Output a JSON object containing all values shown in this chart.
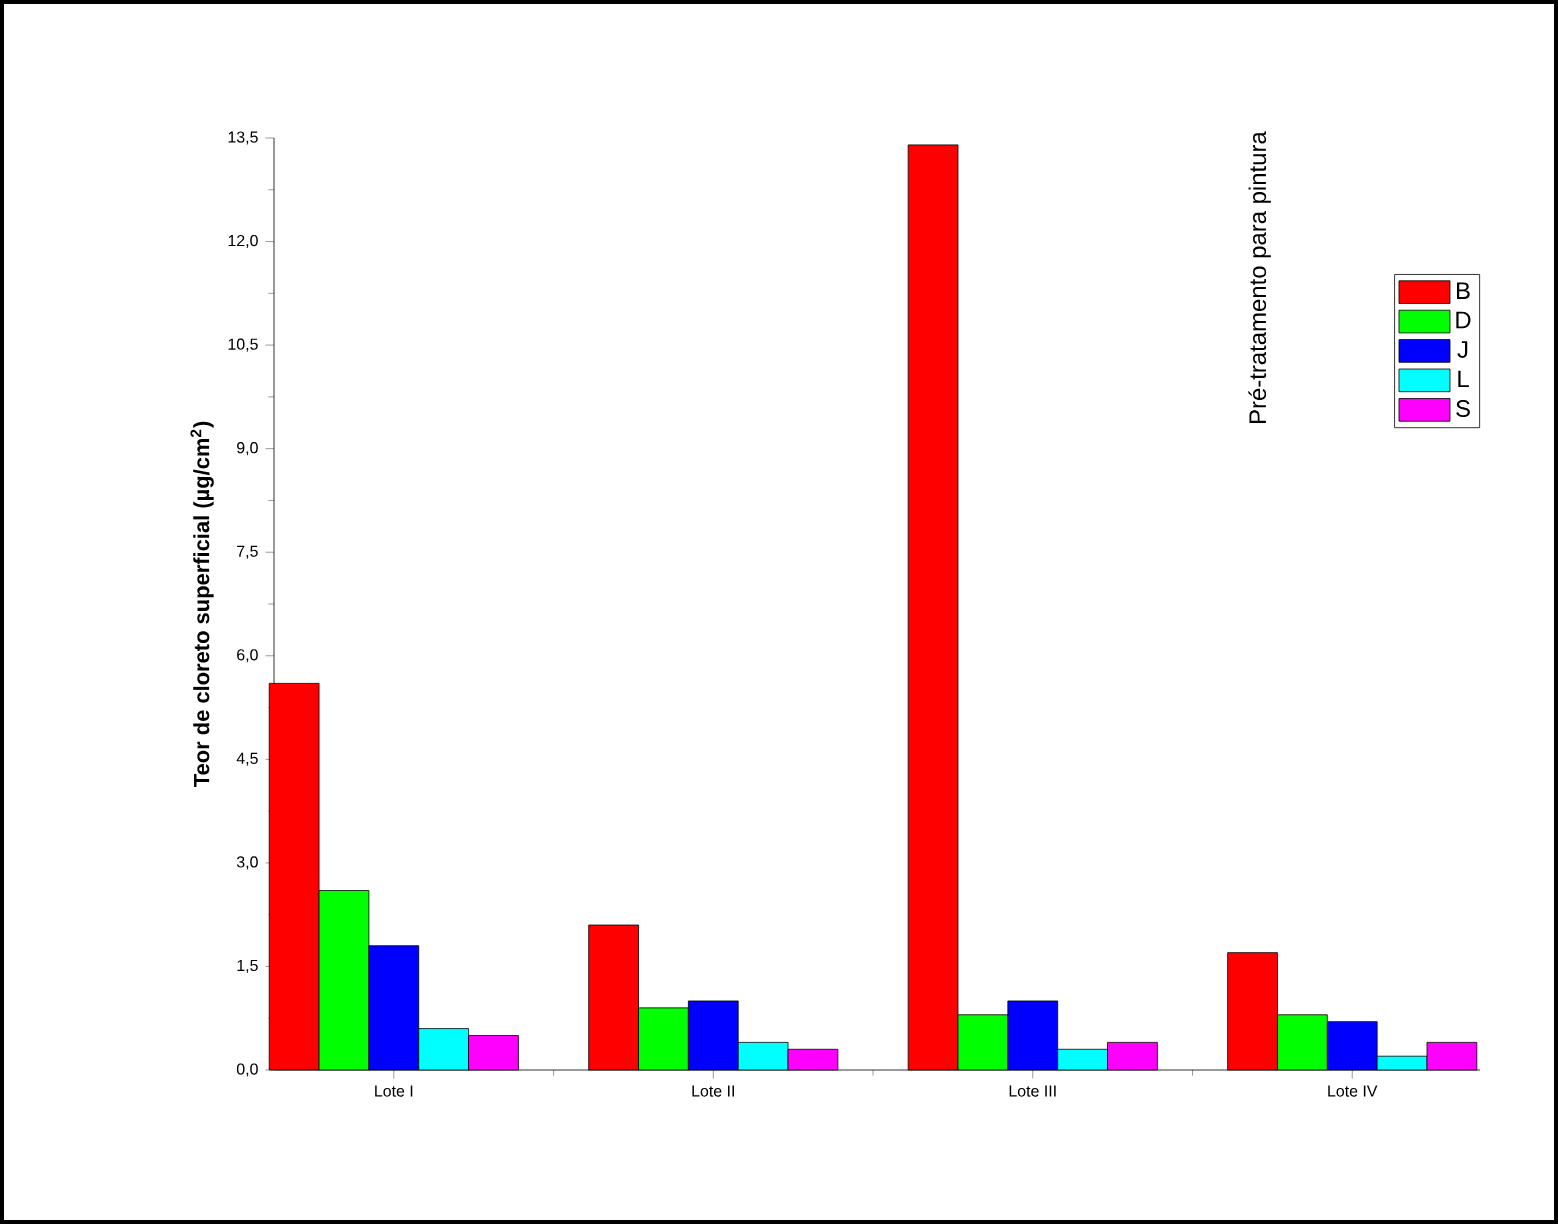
{
  "chart_data": {
    "type": "bar",
    "ylabel": "Teor de cloreto superficial (µg/cm$^{2}$)",
    "categories": [
      "Lote I",
      "Lote II",
      "Lote III",
      "Lote IV"
    ],
    "series": [
      {
        "name": "B",
        "color": "#ff0000",
        "values": [
          5.6,
          2.1,
          13.4,
          1.7
        ]
      },
      {
        "name": "D",
        "color": "#00ff00",
        "values": [
          2.6,
          0.9,
          0.8,
          0.8
        ]
      },
      {
        "name": "J",
        "color": "#0000ff",
        "values": [
          1.8,
          1.0,
          1.0,
          0.7
        ]
      },
      {
        "name": "L",
        "color": "#00ffff",
        "values": [
          0.6,
          0.4,
          0.3,
          0.2
        ]
      },
      {
        "name": "S",
        "color": "#ff00ff",
        "values": [
          0.5,
          0.3,
          0.4,
          0.4
        ]
      }
    ],
    "ylim": [
      0,
      13.5
    ],
    "yticks": [
      {
        "value": 0,
        "label": "0,0"
      },
      {
        "value": 1.5,
        "label": "1,5"
      },
      {
        "value": 3,
        "label": "3,0"
      },
      {
        "value": 4.5,
        "label": "4,5"
      },
      {
        "value": 6,
        "label": "6,0"
      },
      {
        "value": 7.5,
        "label": "7,5"
      },
      {
        "value": 9,
        "label": "9,0"
      },
      {
        "value": 10.5,
        "label": "10,5"
      },
      {
        "value": 12,
        "label": "12,0"
      },
      {
        "value": 13.5,
        "label": "13,5"
      }
    ],
    "annotations": [
      "Pré-tratamento para pintura"
    ],
    "legend": "top right",
    "grid": false
  }
}
